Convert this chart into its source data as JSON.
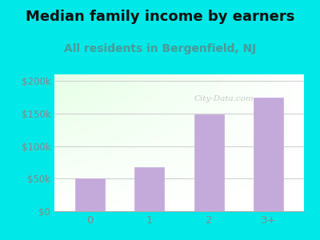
{
  "categories": [
    "0",
    "1",
    "2",
    "3+"
  ],
  "values": [
    50000,
    67000,
    148000,
    175000
  ],
  "bar_color": "#c4aada",
  "bar_edgecolor": "#c4aada",
  "title": "Median family income by earners",
  "subtitle": "All residents in Bergenfield, NJ",
  "title_fontsize": 13,
  "subtitle_fontsize": 10,
  "title_color": "#111111",
  "subtitle_color": "#4a9a9a",
  "bg_outer": "#00e8e8",
  "yticks": [
    0,
    50000,
    100000,
    150000,
    200000
  ],
  "ytick_labels": [
    "$0",
    "$50k",
    "$100k",
    "$150k",
    "$200k"
  ],
  "ylim": [
    0,
    210000
  ],
  "grid_color": "#cccccc",
  "tick_color": "#888888",
  "watermark": "City-Data.com"
}
